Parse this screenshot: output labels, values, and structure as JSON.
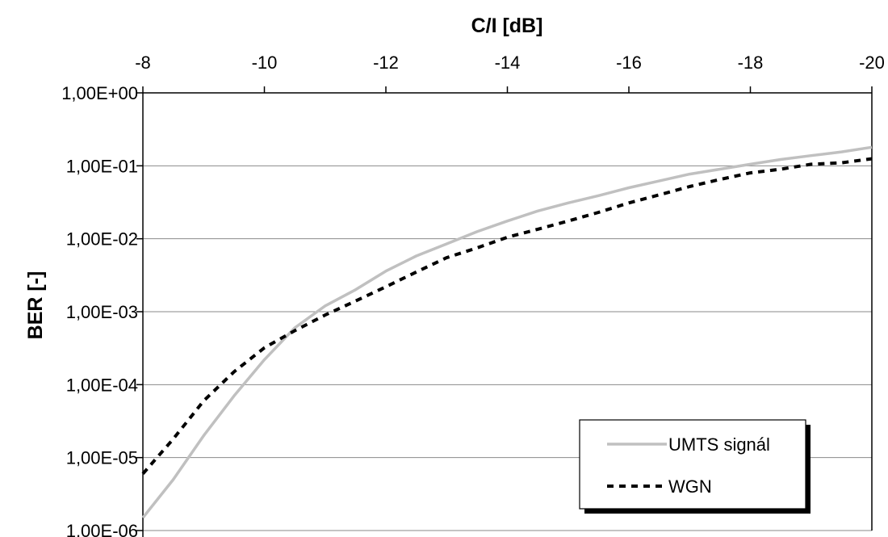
{
  "chart_data": {
    "type": "line",
    "title": "",
    "xlabel": "C/I [dB]",
    "ylabel": "BER [-]",
    "x_axis_position": "top",
    "x_ticks": [
      -8,
      -10,
      -12,
      -14,
      -16,
      -18,
      -20
    ],
    "x_tick_labels": [
      "-8",
      "-10",
      "-12",
      "-14",
      "-16",
      "-18",
      "-20"
    ],
    "xlim": [
      -8,
      -20
    ],
    "y_scale": "log",
    "ylim": [
      1e-06,
      1
    ],
    "y_ticks": [
      1,
      0.1,
      0.01,
      0.001,
      0.0001,
      1e-05,
      1e-06
    ],
    "y_tick_labels": [
      "1,00E+00",
      "1,00E-01",
      "1,00E-02",
      "1,00E-03",
      "1,00E-04",
      "1,00E-05",
      "1,00E-06"
    ],
    "grid": "horizontal",
    "legend_position": "bottom-right",
    "series": [
      {
        "name": "UMTS signál",
        "color": "#c0c0c0",
        "style": "solid",
        "x": [
          -8,
          -8.5,
          -9,
          -9.5,
          -10,
          -10.5,
          -11,
          -11.5,
          -12,
          -12.5,
          -13,
          -13.5,
          -14,
          -14.5,
          -15,
          -15.5,
          -16,
          -16.5,
          -17,
          -17.5,
          -18,
          -18.5,
          -19,
          -19.5,
          -20
        ],
        "values": [
          1.5e-06,
          5e-06,
          2e-05,
          7e-05,
          0.00022,
          0.0006,
          0.0012,
          0.002,
          0.0036,
          0.0058,
          0.0085,
          0.0125,
          0.0175,
          0.024,
          0.031,
          0.039,
          0.05,
          0.062,
          0.077,
          0.09,
          0.105,
          0.122,
          0.138,
          0.155,
          0.18
        ]
      },
      {
        "name": "WGN",
        "color": "#000000",
        "style": "dashed",
        "x": [
          -8,
          -8.5,
          -9,
          -9.5,
          -10,
          -10.5,
          -11,
          -11.5,
          -12,
          -12.5,
          -13,
          -13.5,
          -14,
          -14.5,
          -15,
          -15.5,
          -16,
          -16.5,
          -17,
          -17.5,
          -18,
          -18.5,
          -19,
          -19.5,
          -20
        ],
        "values": [
          6e-06,
          1.8e-05,
          6e-05,
          0.00015,
          0.00032,
          0.00055,
          0.0009,
          0.0014,
          0.0022,
          0.0035,
          0.0055,
          0.0075,
          0.0105,
          0.0135,
          0.0175,
          0.023,
          0.031,
          0.04,
          0.052,
          0.065,
          0.08,
          0.09,
          0.105,
          0.11,
          0.125
        ]
      }
    ]
  }
}
